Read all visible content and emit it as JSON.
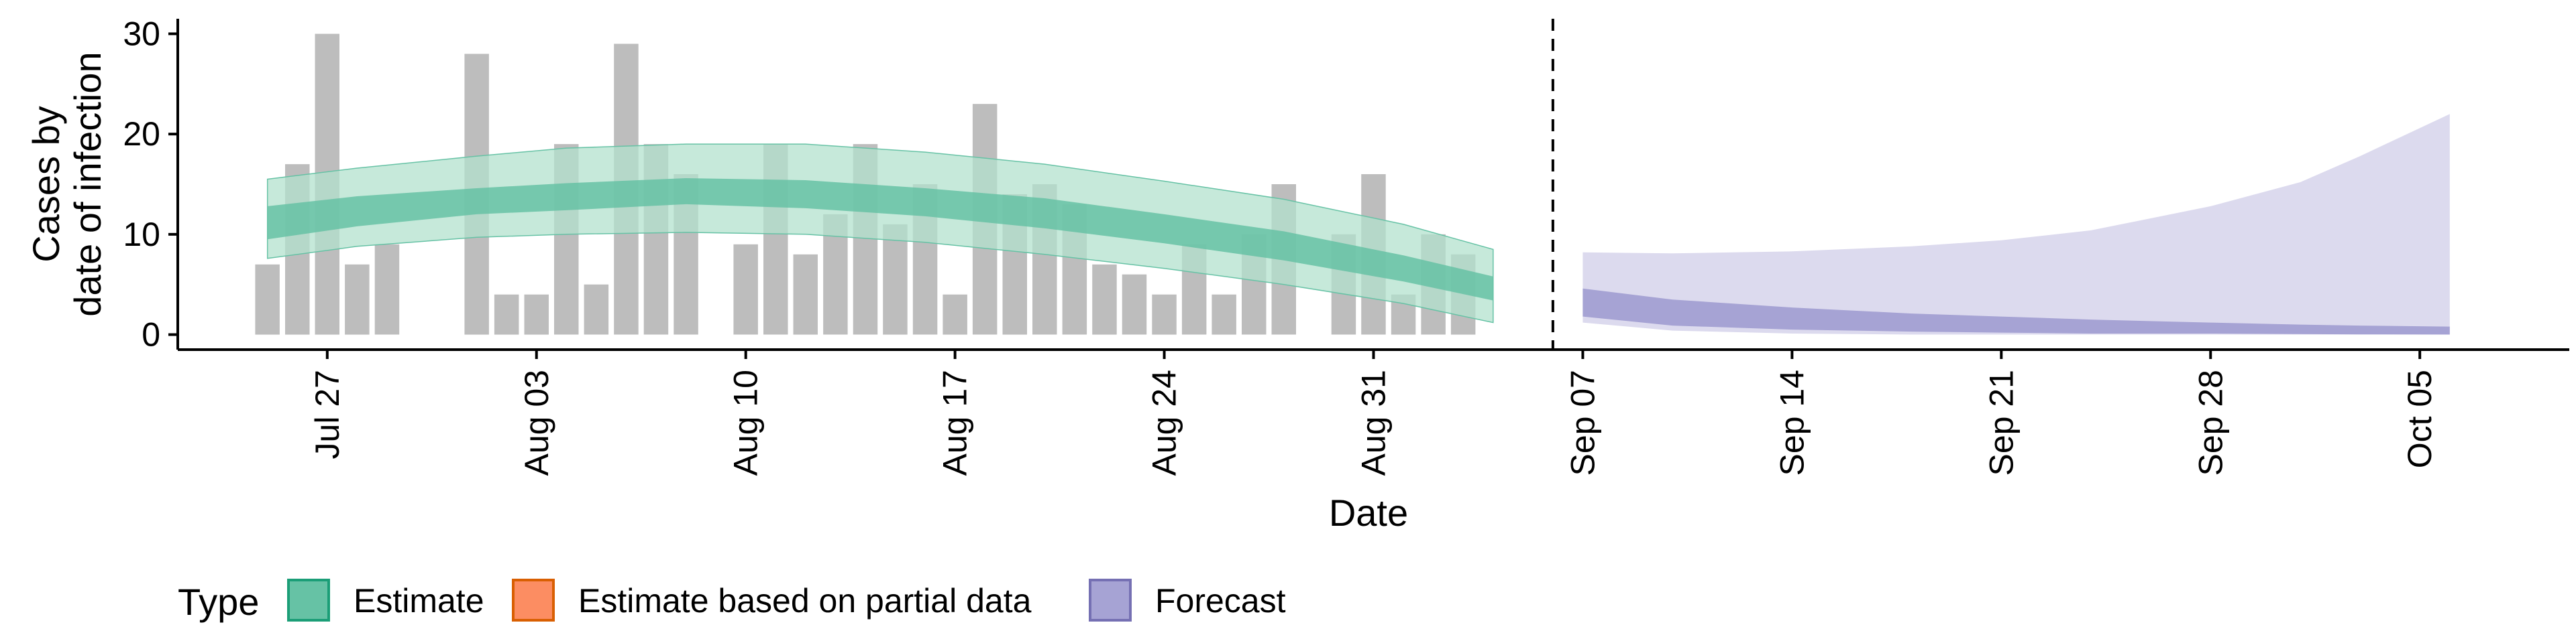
{
  "chart_data": {
    "type": "bar",
    "xlabel": "Date",
    "ylabel_lines": [
      "Cases by",
      "date of infection"
    ],
    "ylim": [
      -1.5,
      31.5
    ],
    "yticks": [
      0,
      10,
      20,
      30
    ],
    "xlim": [
      "2023-07-22",
      "2023-10-10"
    ],
    "xtick_labels": [
      {
        "date": "2023-07-27",
        "label": "Jul 27"
      },
      {
        "date": "2023-08-03",
        "label": "Aug 03"
      },
      {
        "date": "2023-08-10",
        "label": "Aug 10"
      },
      {
        "date": "2023-08-17",
        "label": "Aug 17"
      },
      {
        "date": "2023-08-24",
        "label": "Aug 24"
      },
      {
        "date": "2023-08-31",
        "label": "Aug 31"
      },
      {
        "date": "2023-09-07",
        "label": "Sep 07"
      },
      {
        "date": "2023-09-14",
        "label": "Sep 14"
      },
      {
        "date": "2023-09-21",
        "label": "Sep 21"
      },
      {
        "date": "2023-09-28",
        "label": "Sep 28"
      },
      {
        "date": "2023-10-05",
        "label": "Oct 05"
      }
    ],
    "forecast_start_date": "2023-09-06",
    "reported_cases": [
      {
        "date": "2023-07-25",
        "value": 7
      },
      {
        "date": "2023-07-26",
        "value": 17
      },
      {
        "date": "2023-07-27",
        "value": 30
      },
      {
        "date": "2023-07-28",
        "value": 7
      },
      {
        "date": "2023-07-29",
        "value": 9
      },
      {
        "date": "2023-08-01",
        "value": 28
      },
      {
        "date": "2023-08-02",
        "value": 4
      },
      {
        "date": "2023-08-03",
        "value": 4
      },
      {
        "date": "2023-08-04",
        "value": 19
      },
      {
        "date": "2023-08-05",
        "value": 5
      },
      {
        "date": "2023-08-06",
        "value": 29
      },
      {
        "date": "2023-08-07",
        "value": 19
      },
      {
        "date": "2023-08-08",
        "value": 16
      },
      {
        "date": "2023-08-10",
        "value": 9
      },
      {
        "date": "2023-08-11",
        "value": 19
      },
      {
        "date": "2023-08-12",
        "value": 8
      },
      {
        "date": "2023-08-13",
        "value": 12
      },
      {
        "date": "2023-08-14",
        "value": 19
      },
      {
        "date": "2023-08-15",
        "value": 11
      },
      {
        "date": "2023-08-16",
        "value": 15
      },
      {
        "date": "2023-08-17",
        "value": 4
      },
      {
        "date": "2023-08-18",
        "value": 23
      },
      {
        "date": "2023-08-19",
        "value": 14
      },
      {
        "date": "2023-08-20",
        "value": 15
      },
      {
        "date": "2023-08-21",
        "value": 13
      },
      {
        "date": "2023-08-22",
        "value": 7
      },
      {
        "date": "2023-08-23",
        "value": 6
      },
      {
        "date": "2023-08-24",
        "value": 4
      },
      {
        "date": "2023-08-25",
        "value": 9
      },
      {
        "date": "2023-08-26",
        "value": 4
      },
      {
        "date": "2023-08-27",
        "value": 10
      },
      {
        "date": "2023-08-28",
        "value": 15
      },
      {
        "date": "2023-08-30",
        "value": 10
      },
      {
        "date": "2023-08-31",
        "value": 16
      },
      {
        "date": "2023-09-01",
        "value": 4
      },
      {
        "date": "2023-09-02",
        "value": 10
      },
      {
        "date": "2023-09-03",
        "value": 8
      }
    ],
    "estimate": {
      "type": "area",
      "dates": [
        "2023-07-25",
        "2023-07-28",
        "2023-08-01",
        "2023-08-04",
        "2023-08-08",
        "2023-08-12",
        "2023-08-16",
        "2023-08-20",
        "2023-08-24",
        "2023-08-28",
        "2023-09-01",
        "2023-09-04"
      ],
      "outer_upper": [
        15.5,
        16.6,
        17.8,
        18.6,
        19.0,
        19.0,
        18.2,
        17.0,
        15.3,
        13.5,
        11.0,
        8.5
      ],
      "inner_upper": [
        12.8,
        13.8,
        14.6,
        15.1,
        15.6,
        15.4,
        14.6,
        13.6,
        12.0,
        10.3,
        7.9,
        5.8
      ],
      "inner_lower": [
        9.5,
        10.8,
        12.0,
        12.4,
        13.0,
        12.6,
        11.8,
        10.6,
        9.1,
        7.4,
        5.3,
        3.4
      ],
      "outer_lower": [
        7.6,
        8.8,
        9.7,
        10.0,
        10.2,
        10.0,
        9.2,
        8.0,
        6.6,
        5.0,
        3.1,
        1.2
      ]
    },
    "forecast": {
      "type": "area",
      "dates": [
        "2023-09-07",
        "2023-09-10",
        "2023-09-14",
        "2023-09-18",
        "2023-09-21",
        "2023-09-24",
        "2023-09-28",
        "2023-10-01",
        "2023-10-03",
        "2023-10-06"
      ],
      "outer_upper": [
        8.2,
        8.1,
        8.3,
        8.8,
        9.4,
        10.4,
        12.8,
        15.2,
        17.8,
        22.0
      ],
      "inner_upper": [
        4.6,
        3.5,
        2.7,
        2.1,
        1.8,
        1.5,
        1.2,
        1.0,
        0.9,
        0.8
      ],
      "inner_lower": [
        1.8,
        0.9,
        0.5,
        0.3,
        0.2,
        0.1,
        0.1,
        0.05,
        0.02,
        0.0
      ],
      "outer_lower": [
        1.2,
        0.4,
        0.1,
        0.0,
        0.0,
        0.0,
        0.0,
        0.0,
        0.0,
        0.0
      ]
    },
    "legend": {
      "title": "Type",
      "position": "bottom-left",
      "items": [
        {
          "label": "Estimate",
          "fill": "#66c2a5",
          "stroke": "#1b9e77"
        },
        {
          "label": "Estimate based on partial data",
          "fill": "#fc8d62",
          "stroke": "#d95f02"
        },
        {
          "label": "Forecast",
          "fill": "#a6a3d4",
          "stroke": "#7570b3"
        }
      ]
    },
    "colors": {
      "bar": "#bdbdbd",
      "estimate_outer": "#b3e2cd",
      "estimate_inner": "#66c2a5",
      "forecast_outer": "#dcdaee",
      "forecast_inner": "#a6a3d4",
      "forecast_line": "#000000"
    }
  }
}
